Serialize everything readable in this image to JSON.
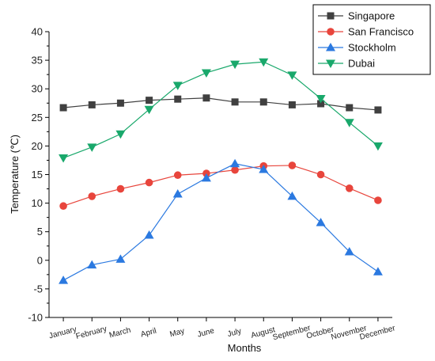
{
  "chart_data": {
    "type": "line",
    "title": "",
    "xlabel": "Months",
    "ylabel": "Temperature (℃)",
    "categories": [
      "January",
      "February",
      "March",
      "April",
      "May",
      "June",
      "July",
      "August",
      "September",
      "October",
      "November",
      "December"
    ],
    "ylim": [
      -10,
      40
    ],
    "yticks": [
      -10,
      -5,
      0,
      5,
      10,
      15,
      20,
      25,
      30,
      35,
      40
    ],
    "grid": false,
    "legend_position": "top-right",
    "series": [
      {
        "name": "Singapore",
        "color": "#404040",
        "marker": "square",
        "values": [
          26.7,
          27.2,
          27.5,
          28.0,
          28.2,
          28.4,
          27.7,
          27.7,
          27.2,
          27.4,
          26.7,
          26.3
        ]
      },
      {
        "name": "San Francisco",
        "color": "#e8453c",
        "marker": "circle",
        "values": [
          9.5,
          11.2,
          12.5,
          13.6,
          14.9,
          15.2,
          15.8,
          16.5,
          16.6,
          15.0,
          12.6,
          10.5
        ]
      },
      {
        "name": "Stockholm",
        "color": "#2b79e0",
        "marker": "triangle-up",
        "values": [
          -3.5,
          -0.8,
          0.2,
          4.4,
          11.6,
          14.4,
          16.9,
          15.9,
          11.2,
          6.6,
          1.5,
          -2.0
        ]
      },
      {
        "name": "Dubai",
        "color": "#19a86b",
        "marker": "triangle-down",
        "values": [
          17.9,
          19.8,
          22.1,
          26.4,
          30.6,
          32.8,
          34.3,
          34.7,
          32.4,
          28.3,
          24.1,
          20.0
        ]
      }
    ]
  }
}
